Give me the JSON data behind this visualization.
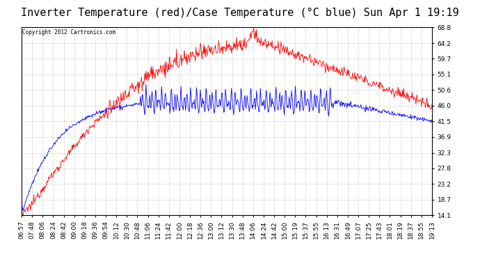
{
  "title": "Inverter Temperature (red)/Case Temperature (°C blue) Sun Apr 1 19:19",
  "copyright": "Copyright 2012 Cartronics.com",
  "y_ticks": [
    14.1,
    18.7,
    23.2,
    27.8,
    32.3,
    36.9,
    41.5,
    46.0,
    50.6,
    55.1,
    59.7,
    64.2,
    68.8
  ],
  "ylim": [
    14.1,
    68.8
  ],
  "x_labels": [
    "06:57",
    "07:48",
    "08:06",
    "08:24",
    "08:42",
    "09:00",
    "09:18",
    "09:36",
    "09:54",
    "10:12",
    "10:30",
    "10:48",
    "11:06",
    "11:24",
    "11:42",
    "12:00",
    "12:18",
    "12:36",
    "13:00",
    "13:12",
    "13:30",
    "13:48",
    "14:06",
    "14:24",
    "14:42",
    "15:00",
    "15:19",
    "15:37",
    "15:55",
    "16:13",
    "16:31",
    "16:49",
    "17:07",
    "17:25",
    "17:43",
    "18:01",
    "18:19",
    "18:37",
    "18:55",
    "19:13"
  ],
  "background_color": "#ffffff",
  "plot_bg_color": "#ffffff",
  "grid_color": "#b0b0b0",
  "red_color": "#ff0000",
  "blue_color": "#0000ff",
  "title_fontsize": 11,
  "tick_fontsize": 6.5
}
